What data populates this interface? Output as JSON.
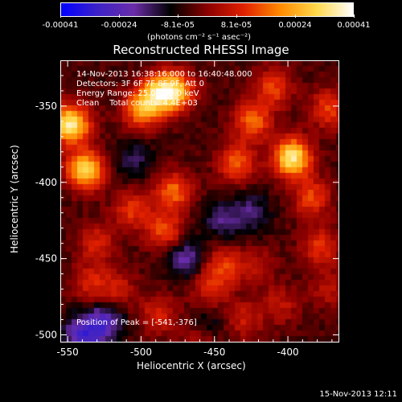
{
  "colorbar": {
    "ticks": [
      "-0.00041",
      "-0.00024",
      "-8.1e-05",
      "8.1e-05",
      "0.00024",
      "0.00041"
    ],
    "units": "(photons cm⁻² s⁻¹ asec⁻²)",
    "colors": [
      "#0000ff",
      "#3d22c8",
      "#6a2da8",
      "#000000",
      "#8a0000",
      "#e02000",
      "#ff8a00",
      "#ffd84a",
      "#ffffff"
    ]
  },
  "chart_data": {
    "type": "heatmap",
    "title": "Reconstructed RHESSI Image",
    "xlabel": "Heliocentric X (arcsec)",
    "ylabel": "Heliocentric Y (arcsec)",
    "xlim": [
      -555,
      -365
    ],
    "ylim": [
      -505,
      -320
    ],
    "x_ticks": [
      -550,
      -500,
      -450,
      -400
    ],
    "y_ticks": [
      -350,
      -400,
      -450,
      -500
    ],
    "colorbar_range": [
      -0.00041,
      0.00041
    ],
    "sources": [
      {
        "x": -548,
        "y": -362,
        "value": 0.00041
      },
      {
        "x": -538,
        "y": -392,
        "value": 0.00036
      },
      {
        "x": -500,
        "y": -352,
        "value": 0.00026
      },
      {
        "x": -488,
        "y": -342,
        "value": 0.0003
      },
      {
        "x": -476,
        "y": -340,
        "value": 0.00028
      },
      {
        "x": -478,
        "y": -406,
        "value": 0.00022
      },
      {
        "x": -484,
        "y": -432,
        "value": 0.00019
      },
      {
        "x": -506,
        "y": -418,
        "value": 0.00016
      },
      {
        "x": -530,
        "y": -440,
        "value": 0.00014
      },
      {
        "x": -516,
        "y": -470,
        "value": 0.00012
      },
      {
        "x": -535,
        "y": -466,
        "value": 0.00013
      },
      {
        "x": -435,
        "y": -387,
        "value": 0.00021
      },
      {
        "x": -424,
        "y": -360,
        "value": 0.00022
      },
      {
        "x": -410,
        "y": -338,
        "value": 0.00018
      },
      {
        "x": -397,
        "y": -384,
        "value": 0.0004
      },
      {
        "x": -372,
        "y": -352,
        "value": 0.00018
      },
      {
        "x": -384,
        "y": -410,
        "value": 0.00018
      },
      {
        "x": -378,
        "y": -442,
        "value": 0.00016
      },
      {
        "x": -444,
        "y": -455,
        "value": 0.00017
      },
      {
        "x": -454,
        "y": -470,
        "value": 0.00013
      },
      {
        "x": -430,
        "y": -490,
        "value": 0.00012
      },
      {
        "x": -405,
        "y": -480,
        "value": 0.00011
      },
      {
        "x": -488,
        "y": -487,
        "value": 0.00014
      },
      {
        "x": -460,
        "y": -505,
        "value": 0.00013
      },
      {
        "x": -372,
        "y": -470,
        "value": 0.0001
      },
      {
        "x": -422,
        "y": -455,
        "value": 0.0001
      },
      {
        "x": -525,
        "y": -492,
        "value": -0.0002
      },
      {
        "x": -540,
        "y": -500,
        "value": -0.00022
      },
      {
        "x": -445,
        "y": -425,
        "value": -0.00012
      },
      {
        "x": -455,
        "y": -495,
        "value": -0.0001
      },
      {
        "x": -470,
        "y": -450,
        "value": -0.00016
      },
      {
        "x": -425,
        "y": -420,
        "value": -0.00012
      },
      {
        "x": -505,
        "y": -385,
        "value": -0.0001
      }
    ]
  },
  "annotations": {
    "time": "14-Nov-2013 16:38:16.000 to 16:40:48.000",
    "detectors": "Detectors: 3F 6F 7F 8F 9F, Att 0",
    "energy": "Energy Range: 25.0 - 50.0 keV",
    "clean": "Clean    Total counts: 4.4E+03",
    "peak": "Position of Peak = [-541,-376]"
  },
  "footer": "15-Nov-2013 12:11"
}
